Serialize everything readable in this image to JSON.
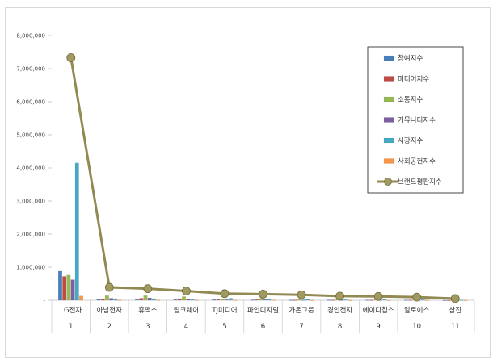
{
  "chart_data": {
    "type": "bar",
    "categories": [
      "LG전자",
      "아남전자",
      "휴맥스",
      "팅크웨어",
      "TJ미디어",
      "파인디지털",
      "가온그룹",
      "경인전자",
      "에이디칩스",
      "알로이스",
      "삼진"
    ],
    "ranks": [
      "1",
      "2",
      "3",
      "4",
      "5",
      "6",
      "7",
      "8",
      "9",
      "10",
      "11"
    ],
    "ylim": [
      0,
      8000000
    ],
    "yticks": [
      "-",
      "1,000,000",
      "2,000,000",
      "3,000,000",
      "4,000,000",
      "5,000,000",
      "6,000,000",
      "7,000,000",
      "8,000,000"
    ],
    "grid": false,
    "legend_position": "right",
    "series": [
      {
        "name": "참여지수",
        "kind": "bar",
        "color": "#4a7ebb",
        "values": [
          880000,
          40000,
          20000,
          20000,
          20000,
          15000,
          10000,
          10000,
          10000,
          10000,
          5000
        ]
      },
      {
        "name": "미디어지수",
        "kind": "bar",
        "color": "#be4b48",
        "values": [
          720000,
          30000,
          60000,
          50000,
          20000,
          20000,
          10000,
          10000,
          10000,
          10000,
          5000
        ]
      },
      {
        "name": "소통지수",
        "kind": "bar",
        "color": "#98b954",
        "values": [
          760000,
          140000,
          140000,
          110000,
          40000,
          60000,
          40000,
          30000,
          30000,
          20000,
          10000
        ]
      },
      {
        "name": "커뮤니티지수",
        "kind": "bar",
        "color": "#7d60a0",
        "values": [
          620000,
          60000,
          70000,
          40000,
          20000,
          20000,
          10000,
          10000,
          10000,
          10000,
          5000
        ]
      },
      {
        "name": "시장지수",
        "kind": "bar",
        "color": "#46aac5",
        "values": [
          4150000,
          50000,
          50000,
          40000,
          60000,
          30000,
          30000,
          20000,
          20000,
          20000,
          10000
        ]
      },
      {
        "name": "사회공헌지수",
        "kind": "bar",
        "color": "#f79646",
        "values": [
          130000,
          10000,
          10000,
          10000,
          10000,
          10000,
          5000,
          5000,
          5000,
          5000,
          5000
        ]
      },
      {
        "name": "브랜드평판지수",
        "kind": "line",
        "color": "#938953",
        "marker_color": "#a09a60",
        "values": [
          7330000,
          390000,
          350000,
          280000,
          200000,
          185000,
          165000,
          125000,
          115000,
          95000,
          50000
        ]
      }
    ]
  }
}
